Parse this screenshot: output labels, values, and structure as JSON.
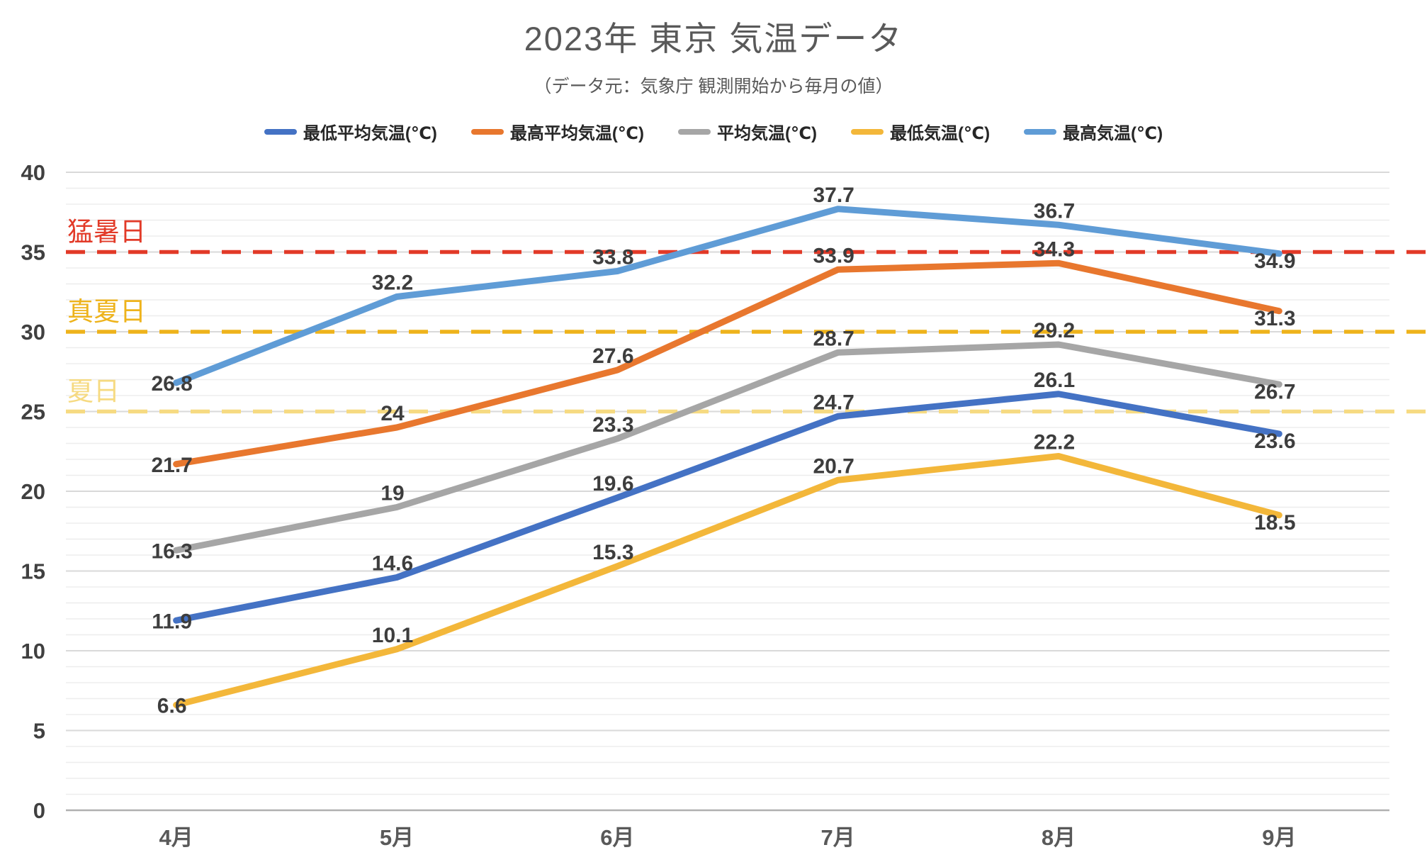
{
  "chart_data": {
    "type": "line",
    "title": "2023年 東京 気温データ",
    "subtitle": "（データ元：気象庁 観測開始から毎月の値）",
    "categories": [
      "4月",
      "5月",
      "6月",
      "7月",
      "8月",
      "9月"
    ],
    "series": [
      {
        "key": "min-avg-temp",
        "name": "最低平均気温(℃)",
        "color": "#4472C4",
        "values": [
          11.9,
          14.6,
          19.6,
          24.7,
          26.1,
          23.6
        ]
      },
      {
        "key": "max-avg-temp",
        "name": "最高平均気温(℃)",
        "color": "#E8772E",
        "values": [
          21.7,
          24,
          27.6,
          33.9,
          34.3,
          31.3
        ]
      },
      {
        "key": "avg-temp",
        "name": "平均気温(℃)",
        "color": "#A6A6A6",
        "values": [
          16.3,
          19,
          23.3,
          28.7,
          29.2,
          26.7
        ]
      },
      {
        "key": "min-temp",
        "name": "最低気温(℃)",
        "color": "#F3B73A",
        "values": [
          6.6,
          10.1,
          15.3,
          20.7,
          22.2,
          18.5
        ]
      },
      {
        "key": "max-temp",
        "name": "最高気温(℃)",
        "color": "#5F9CD6",
        "values": [
          26.8,
          32.2,
          33.8,
          37.7,
          36.7,
          34.9
        ]
      }
    ],
    "thresholds": [
      {
        "key": "moshobi",
        "label": "猛暑日",
        "value": 35,
        "color": "#E23A28"
      },
      {
        "key": "manatsubi",
        "label": "真夏日",
        "value": 30,
        "color": "#EEB31B"
      },
      {
        "key": "natsubi",
        "label": "夏日",
        "value": 25,
        "color": "#F6DA81"
      }
    ],
    "xlabel": "",
    "ylabel": "",
    "ylim": [
      0,
      40
    ],
    "ytick_step": 5,
    "minor_gridline_step": 1,
    "grid": "on",
    "legend_position": "top",
    "colors": {
      "title_text": "#595959",
      "legend_text": "#262626",
      "axis_tick_text": "#404040",
      "month_text": "#595959",
      "data_label_text": "#3D3D3D",
      "minor_gridline": "#EDEDED",
      "major_gridline": "#D9D9D9",
      "zero_line": "#B0B0B0"
    }
  }
}
